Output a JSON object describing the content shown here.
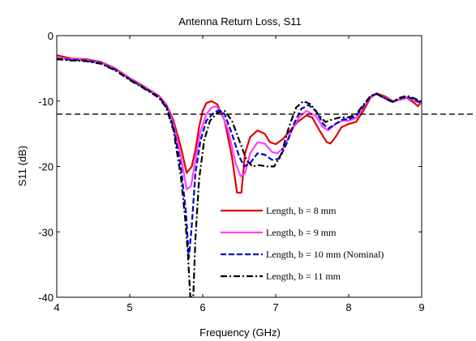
{
  "chart_data": {
    "type": "line",
    "title": "Antenna Return Loss, S11",
    "xlabel": "Frequency (GHz)",
    "ylabel": "S11 (dB)",
    "xlim": [
      4,
      9
    ],
    "ylim": [
      -40,
      0
    ],
    "xticks": [
      4,
      5,
      6,
      7,
      8,
      9
    ],
    "yticks": [
      0,
      -10,
      -20,
      -30,
      -40
    ],
    "xtick_labels": [
      "4",
      "5",
      "6",
      "7",
      "8",
      "9"
    ],
    "ytick_labels": [
      "0",
      "-10",
      "-20",
      "-30",
      "-40"
    ],
    "grid": false,
    "legend_position": "lower-right",
    "reference_line": {
      "y": -12,
      "style": "dashed",
      "color": "#000000"
    },
    "series": [
      {
        "name": "Length, b = 8 mm",
        "color": "#e00000",
        "dash": "solid",
        "points": [
          [
            4.0,
            -3.0
          ],
          [
            4.2,
            -3.5
          ],
          [
            4.4,
            -3.6
          ],
          [
            4.6,
            -4.0
          ],
          [
            4.8,
            -5.0
          ],
          [
            5.0,
            -6.5
          ],
          [
            5.2,
            -7.8
          ],
          [
            5.4,
            -9.2
          ],
          [
            5.5,
            -10.5
          ],
          [
            5.6,
            -13.0
          ],
          [
            5.7,
            -17.0
          ],
          [
            5.78,
            -21.0
          ],
          [
            5.85,
            -20.0
          ],
          [
            5.9,
            -17.5
          ],
          [
            5.95,
            -14.0
          ],
          [
            6.0,
            -11.5
          ],
          [
            6.05,
            -10.3
          ],
          [
            6.12,
            -10.0
          ],
          [
            6.2,
            -10.5
          ],
          [
            6.3,
            -13.0
          ],
          [
            6.4,
            -18.5
          ],
          [
            6.47,
            -24.0
          ],
          [
            6.53,
            -24.0
          ],
          [
            6.58,
            -18.0
          ],
          [
            6.65,
            -15.5
          ],
          [
            6.75,
            -14.5
          ],
          [
            6.85,
            -15.0
          ],
          [
            6.92,
            -16.3
          ],
          [
            7.0,
            -16.6
          ],
          [
            7.1,
            -15.8
          ],
          [
            7.2,
            -14.5
          ],
          [
            7.3,
            -13.2
          ],
          [
            7.42,
            -12.2
          ],
          [
            7.5,
            -12.5
          ],
          [
            7.6,
            -14.5
          ],
          [
            7.7,
            -16.3
          ],
          [
            7.75,
            -16.5
          ],
          [
            7.82,
            -15.5
          ],
          [
            7.9,
            -14.0
          ],
          [
            8.0,
            -13.5
          ],
          [
            8.1,
            -13.2
          ],
          [
            8.2,
            -11.5
          ],
          [
            8.3,
            -9.5
          ],
          [
            8.38,
            -8.8
          ],
          [
            8.5,
            -9.3
          ],
          [
            8.6,
            -10.0
          ],
          [
            8.7,
            -9.8
          ],
          [
            8.8,
            -9.5
          ],
          [
            8.9,
            -10.3
          ],
          [
            8.95,
            -10.8
          ],
          [
            9.0,
            -10.0
          ]
        ]
      },
      {
        "name": "Length, b = 9 mm",
        "color": "#ff40ff",
        "dash": "solid",
        "points": [
          [
            4.0,
            -3.4
          ],
          [
            4.2,
            -3.6
          ],
          [
            4.4,
            -3.7
          ],
          [
            4.6,
            -4.1
          ],
          [
            4.8,
            -5.1
          ],
          [
            5.0,
            -6.6
          ],
          [
            5.2,
            -7.9
          ],
          [
            5.4,
            -9.3
          ],
          [
            5.5,
            -10.6
          ],
          [
            5.6,
            -13.5
          ],
          [
            5.7,
            -18.5
          ],
          [
            5.78,
            -23.5
          ],
          [
            5.84,
            -23.0
          ],
          [
            5.9,
            -19.0
          ],
          [
            5.96,
            -15.0
          ],
          [
            6.05,
            -12.0
          ],
          [
            6.12,
            -11.0
          ],
          [
            6.18,
            -10.8
          ],
          [
            6.25,
            -11.5
          ],
          [
            6.35,
            -14.5
          ],
          [
            6.45,
            -19.5
          ],
          [
            6.52,
            -21.5
          ],
          [
            6.58,
            -21.0
          ],
          [
            6.65,
            -18.0
          ],
          [
            6.75,
            -16.3
          ],
          [
            6.85,
            -16.5
          ],
          [
            6.95,
            -17.8
          ],
          [
            7.02,
            -18.0
          ],
          [
            7.12,
            -17.0
          ],
          [
            7.22,
            -14.5
          ],
          [
            7.32,
            -12.5
          ],
          [
            7.42,
            -11.5
          ],
          [
            7.55,
            -12.3
          ],
          [
            7.65,
            -14.0
          ],
          [
            7.72,
            -14.5
          ],
          [
            7.82,
            -13.5
          ],
          [
            7.92,
            -13.0
          ],
          [
            8.0,
            -13.0
          ],
          [
            8.1,
            -12.6
          ],
          [
            8.2,
            -11.0
          ],
          [
            8.3,
            -9.4
          ],
          [
            8.38,
            -8.9
          ],
          [
            8.5,
            -9.5
          ],
          [
            8.6,
            -10.1
          ],
          [
            8.7,
            -9.7
          ],
          [
            8.8,
            -9.4
          ],
          [
            8.9,
            -10.0
          ],
          [
            9.0,
            -10.3
          ]
        ]
      },
      {
        "name": "Length, b = 10 mm (Nominal)",
        "color": "#0000cc",
        "dash": "dashed",
        "points": [
          [
            4.0,
            -3.5
          ],
          [
            4.2,
            -3.7
          ],
          [
            4.4,
            -3.8
          ],
          [
            4.6,
            -4.2
          ],
          [
            4.8,
            -5.2
          ],
          [
            5.0,
            -6.7
          ],
          [
            5.2,
            -8.0
          ],
          [
            5.4,
            -9.4
          ],
          [
            5.5,
            -10.8
          ],
          [
            5.6,
            -14.0
          ],
          [
            5.7,
            -20.0
          ],
          [
            5.77,
            -27.0
          ],
          [
            5.81,
            -34.0
          ],
          [
            5.85,
            -29.0
          ],
          [
            5.9,
            -21.0
          ],
          [
            5.97,
            -16.0
          ],
          [
            6.05,
            -13.0
          ],
          [
            6.15,
            -11.8
          ],
          [
            6.22,
            -11.4
          ],
          [
            6.3,
            -12.0
          ],
          [
            6.4,
            -15.0
          ],
          [
            6.5,
            -18.5
          ],
          [
            6.57,
            -20.0
          ],
          [
            6.65,
            -19.5
          ],
          [
            6.75,
            -18.0
          ],
          [
            6.85,
            -18.2
          ],
          [
            6.95,
            -19.0
          ],
          [
            7.05,
            -18.8
          ],
          [
            7.15,
            -16.5
          ],
          [
            7.25,
            -13.5
          ],
          [
            7.35,
            -11.2
          ],
          [
            7.45,
            -10.6
          ],
          [
            7.55,
            -11.5
          ],
          [
            7.65,
            -13.5
          ],
          [
            7.72,
            -14.2
          ],
          [
            7.82,
            -13.5
          ],
          [
            7.92,
            -12.8
          ],
          [
            8.0,
            -12.8
          ],
          [
            8.1,
            -12.3
          ],
          [
            8.2,
            -10.8
          ],
          [
            8.3,
            -9.3
          ],
          [
            8.38,
            -8.9
          ],
          [
            8.5,
            -9.6
          ],
          [
            8.6,
            -10.2
          ],
          [
            8.7,
            -9.6
          ],
          [
            8.8,
            -9.3
          ],
          [
            8.9,
            -9.8
          ],
          [
            9.0,
            -10.3
          ]
        ]
      },
      {
        "name": "Length, b = 11 mm",
        "color": "#000000",
        "dash": "dashdot",
        "points": [
          [
            4.0,
            -3.6
          ],
          [
            4.2,
            -3.8
          ],
          [
            4.4,
            -3.9
          ],
          [
            4.6,
            -4.3
          ],
          [
            4.8,
            -5.3
          ],
          [
            5.0,
            -6.8
          ],
          [
            5.2,
            -8.1
          ],
          [
            5.4,
            -9.5
          ],
          [
            5.5,
            -11.0
          ],
          [
            5.6,
            -14.5
          ],
          [
            5.7,
            -21.5
          ],
          [
            5.76,
            -28.0
          ],
          [
            5.8,
            -34.0
          ],
          [
            5.83,
            -40.0
          ],
          [
            5.87,
            -40.0
          ],
          [
            5.9,
            -31.0
          ],
          [
            5.95,
            -22.0
          ],
          [
            6.02,
            -16.0
          ],
          [
            6.1,
            -13.0
          ],
          [
            6.2,
            -11.8
          ],
          [
            6.3,
            -11.5
          ],
          [
            6.4,
            -13.0
          ],
          [
            6.5,
            -16.0
          ],
          [
            6.6,
            -19.0
          ],
          [
            6.68,
            -20.0
          ],
          [
            6.78,
            -19.8
          ],
          [
            6.88,
            -20.0
          ],
          [
            6.98,
            -20.0
          ],
          [
            7.08,
            -18.0
          ],
          [
            7.18,
            -14.0
          ],
          [
            7.28,
            -11.0
          ],
          [
            7.38,
            -10.0
          ],
          [
            7.48,
            -10.5
          ],
          [
            7.58,
            -12.0
          ],
          [
            7.68,
            -13.2
          ],
          [
            7.78,
            -12.8
          ],
          [
            7.88,
            -12.5
          ],
          [
            8.0,
            -12.5
          ],
          [
            8.1,
            -12.0
          ],
          [
            8.2,
            -10.6
          ],
          [
            8.3,
            -9.2
          ],
          [
            8.38,
            -8.9
          ],
          [
            8.5,
            -9.6
          ],
          [
            8.6,
            -10.1
          ],
          [
            8.7,
            -9.5
          ],
          [
            8.8,
            -9.2
          ],
          [
            8.9,
            -9.6
          ],
          [
            9.0,
            -10.1
          ]
        ]
      }
    ]
  }
}
